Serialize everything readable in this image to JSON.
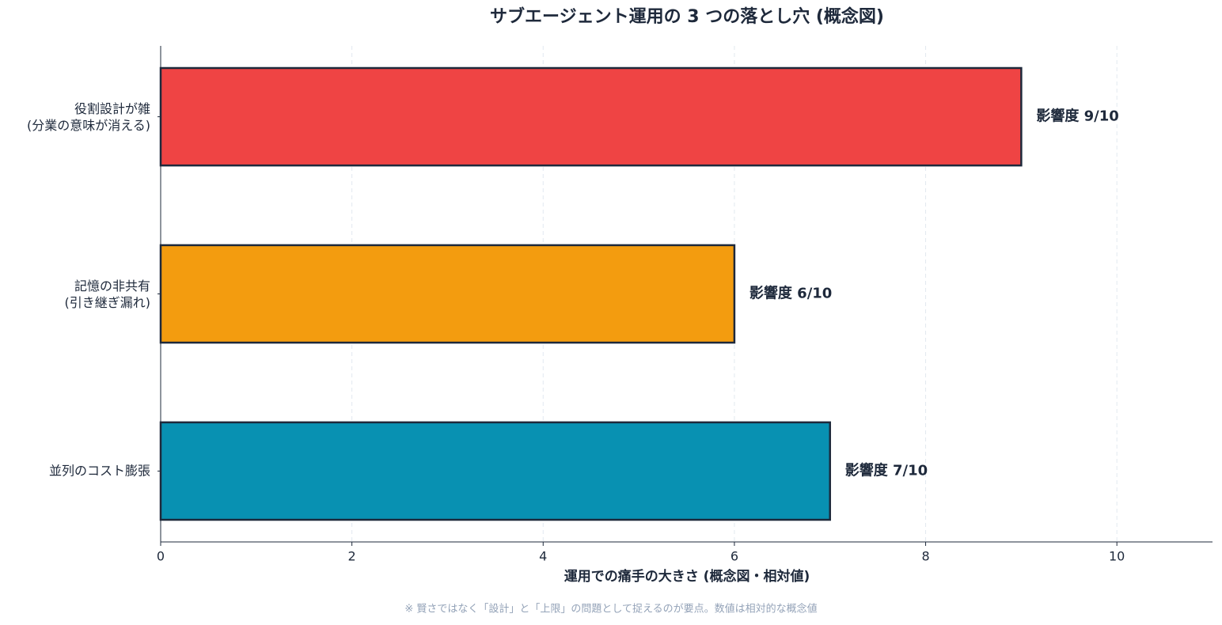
{
  "chart_data": {
    "type": "barh",
    "title": "サブエージェント運用の 3 つの落とし穴 (概念図)",
    "xlabel": "運用での痛手の大きさ (概念図・相対値)",
    "footnote": "※ 賢さではなく「設計」と「上限」の問題として捉えるのが要点。数値は相対的な概念値",
    "categories": [
      "役割設計が雑\n(分業の意味が消える)",
      "記憶の非共有\n(引き継ぎ漏れ)",
      "並列のコスト膨張"
    ],
    "values": [
      9,
      6,
      7
    ],
    "value_labels": [
      "影響度 9/10",
      "影響度 6/10",
      "影響度 7/10"
    ],
    "colors": [
      "#ef4444",
      "#f39c0f",
      "#0891b2"
    ],
    "edge_color": "#1e293b",
    "xlim": [
      0,
      11
    ],
    "xticks": [
      0,
      2,
      4,
      6,
      8,
      10
    ],
    "grid": true
  }
}
